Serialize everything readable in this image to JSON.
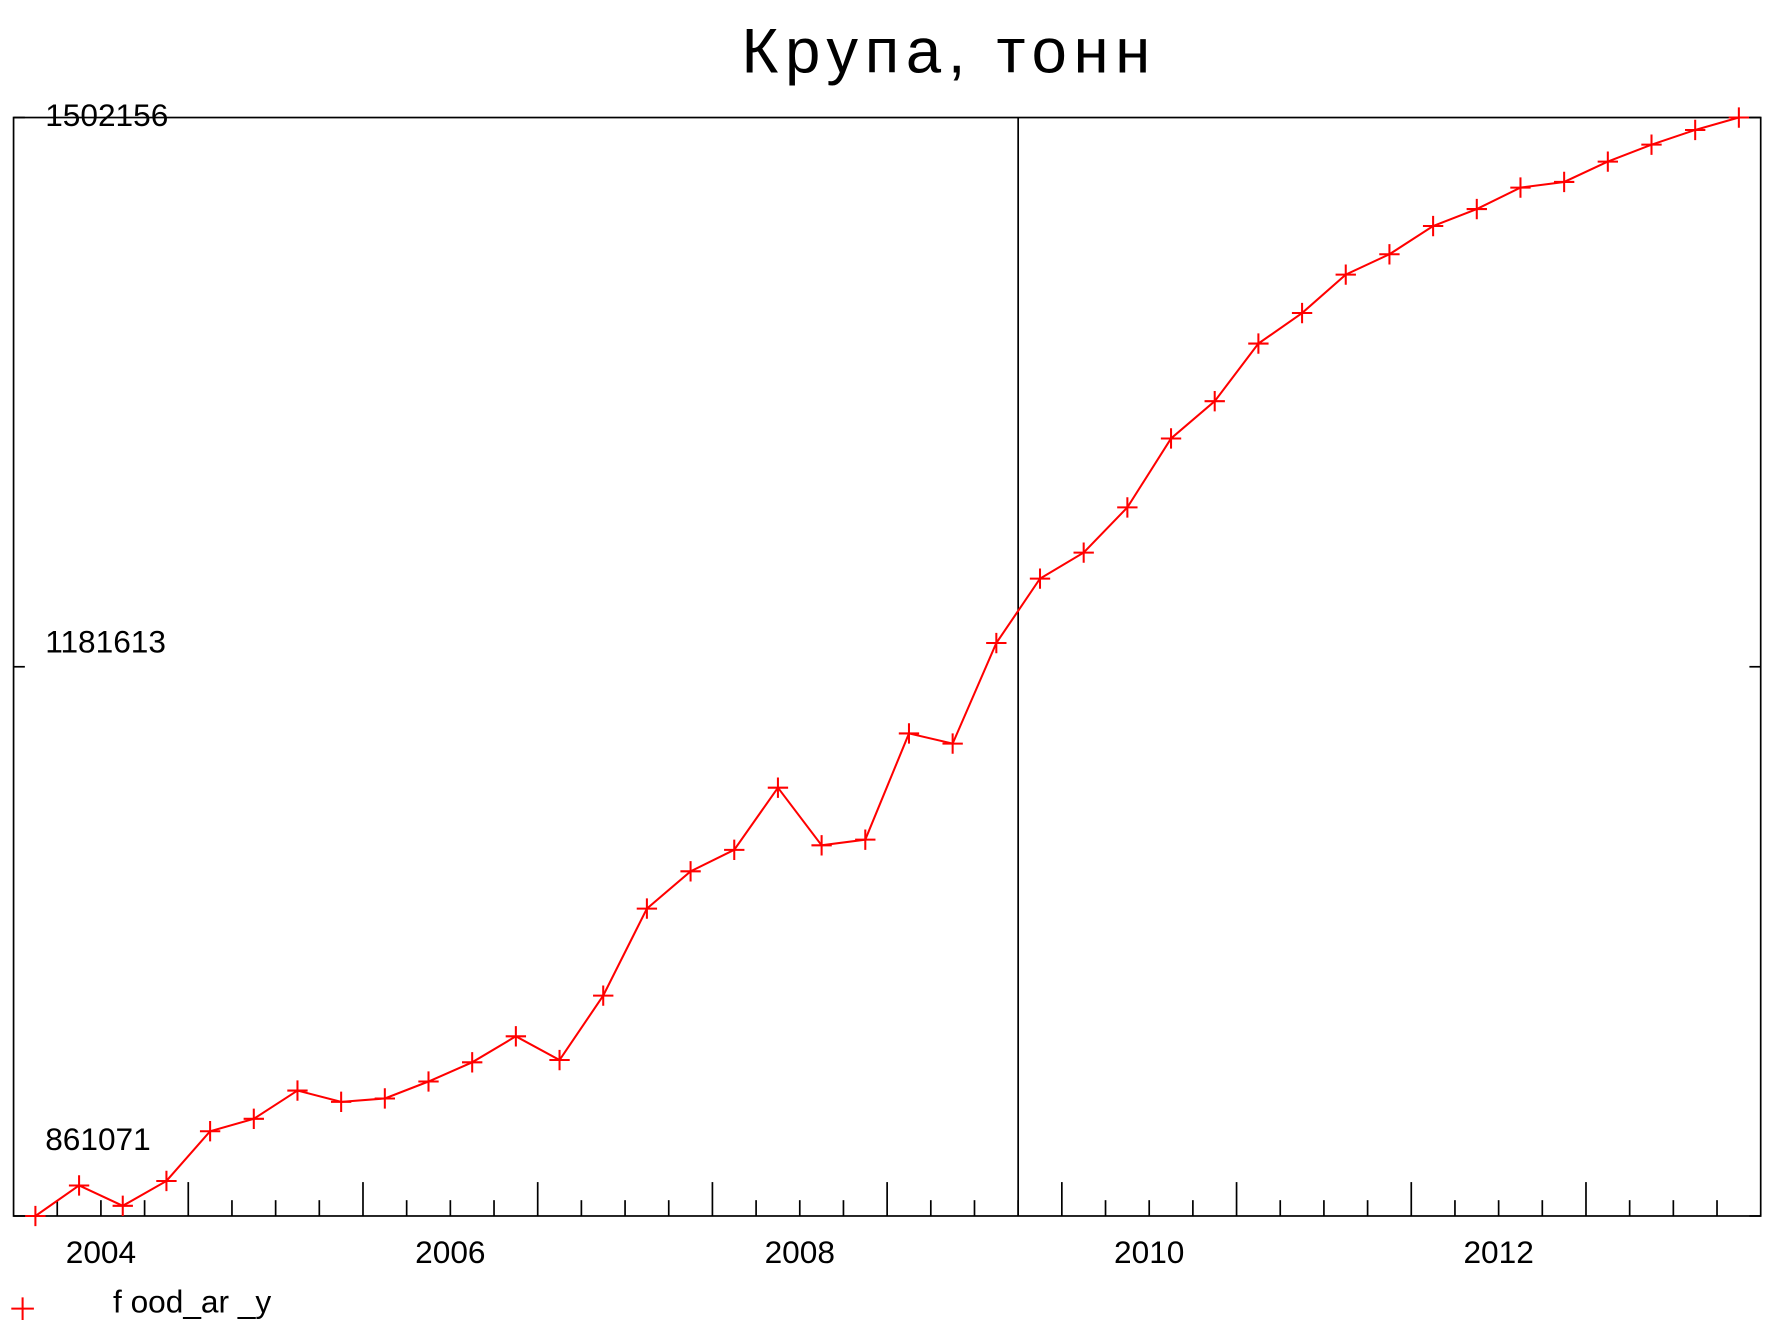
{
  "chart_data": {
    "type": "line",
    "title": "Крупа,  тонн",
    "x": [
      2004.125,
      2004.375,
      2004.625,
      2004.875,
      2005.125,
      2005.375,
      2005.625,
      2005.875,
      2006.125,
      2006.375,
      2006.625,
      2006.875,
      2007.125,
      2007.375,
      2007.625,
      2007.875,
      2008.125,
      2008.375,
      2008.625,
      2008.875,
      2009.125,
      2009.375,
      2009.625,
      2009.875,
      2010.125,
      2010.375,
      2010.625,
      2010.875,
      2011.125,
      2011.375,
      2011.625,
      2011.875,
      2012.125,
      2012.375,
      2012.625,
      2012.875,
      2013.125,
      2013.375,
      2013.625,
      2013.875
    ],
    "series": [
      {
        "name": "f ood_ar _y",
        "color": "#ff0000",
        "marker": "plus",
        "values": [
          861071,
          878879,
          867007,
          881517,
          910537,
          917792,
          934281,
          927685,
          929664,
          939557,
          950770,
          965939,
          952089,
          989683,
          1040469,
          1062234,
          1074766,
          1111041,
          1077404,
          1080702,
          1142700,
          1136764,
          1195464,
          1233058,
          1248228,
          1274610,
          1314843,
          1336607,
          1370244,
          1388051,
          1410476,
          1422348,
          1438837,
          1448730,
          1461262,
          1464559,
          1476431,
          1486324,
          1494898,
          1502156
        ]
      }
    ],
    "xlim": [
      2004,
      2014
    ],
    "xticks": [
      {
        "value": 2004.5,
        "label": "2004"
      },
      {
        "value": 2006.5,
        "label": "2006"
      },
      {
        "value": 2008.5,
        "label": "2008"
      },
      {
        "value": 2010.5,
        "label": "2010"
      },
      {
        "value": 2012.5,
        "label": "2012"
      }
    ],
    "xmajor": [
      2005,
      2006,
      2007,
      2008,
      2009,
      2010,
      2011,
      2012,
      2013
    ],
    "xminor": [
      2004.25,
      2004.5,
      2004.75,
      2005.25,
      2005.5,
      2005.75,
      2006.25,
      2006.5,
      2006.75,
      2007.25,
      2007.5,
      2007.75,
      2008.25,
      2008.5,
      2008.75,
      2009.25,
      2009.5,
      2009.75,
      2010.25,
      2010.5,
      2010.75,
      2011.25,
      2011.5,
      2011.75,
      2012.25,
      2012.5,
      2012.75,
      2013.25,
      2013.5,
      2013.75
    ],
    "vline": 2009.75,
    "ylim": [
      861071,
      1502156
    ],
    "yticks": [
      861071,
      1181613,
      1502156
    ],
    "grid": false,
    "legend": "bottom-left"
  }
}
